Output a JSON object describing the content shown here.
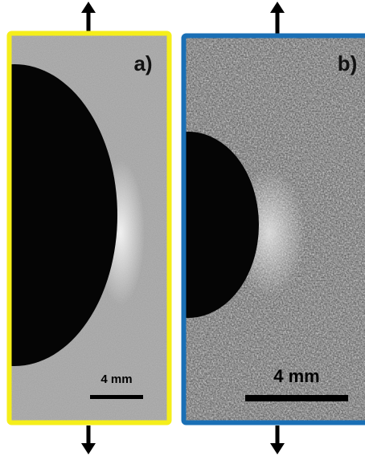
{
  "panels": [
    {
      "label": "a)",
      "scale_bar": "4 mm"
    },
    {
      "label": "b)",
      "scale_bar": "4 mm"
    }
  ]
}
